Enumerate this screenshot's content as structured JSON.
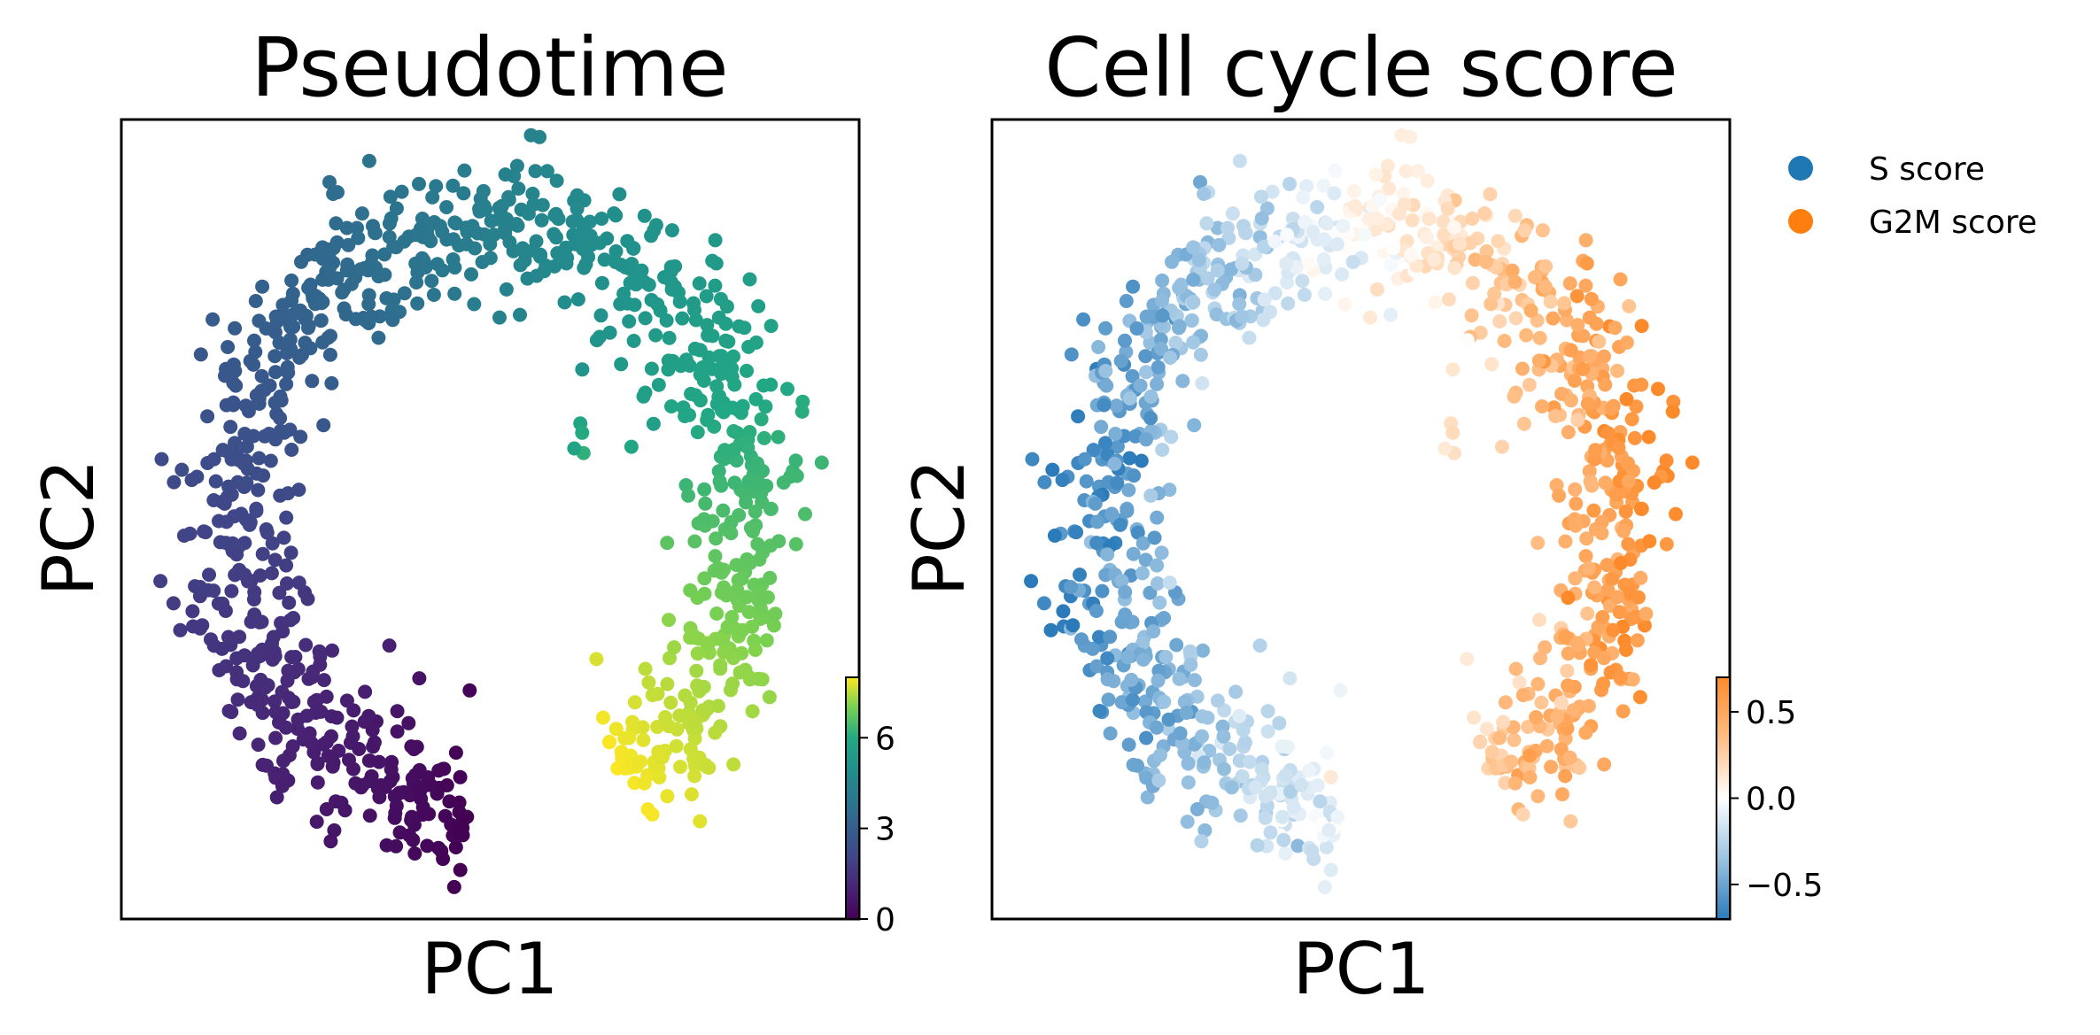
{
  "chart_data": [
    {
      "type": "scatter",
      "title": "Pseudotime",
      "xlabel": "PC1",
      "ylabel": "PC2",
      "grid": false,
      "axis_ticks": false,
      "color_variable": "pseudotime",
      "colormap": "viridis",
      "colorbar": {
        "range": [
          0,
          8
        ],
        "ticks": [
          0,
          3,
          6
        ],
        "tick_labels": [
          "0",
          "3",
          "6"
        ]
      },
      "shape": "ring",
      "approx_point_count": 1000,
      "ring": {
        "center": [
          0.0,
          0.0
        ],
        "radius": 1.0,
        "spread": 0.12,
        "gap_angle_deg": [
          280,
          300
        ],
        "note_keys": "x,y in PC units; color increases counterclockwise from bottom"
      }
    },
    {
      "type": "scatter",
      "title": "Cell cycle score",
      "xlabel": "PC1",
      "ylabel": "PC2",
      "grid": false,
      "axis_ticks": false,
      "color_variable": "cell cycle score",
      "colormap": "diverging blue-white-orange",
      "colorbar": {
        "range": [
          -0.7,
          0.7
        ],
        "ticks": [
          -0.5,
          0.0,
          0.5
        ],
        "tick_labels": [
          "−0.5",
          "0.0",
          "0.5"
        ]
      },
      "legend": {
        "placement": "outside-right-top",
        "entries": [
          {
            "label": "S score",
            "color": "#1f77b4"
          },
          {
            "label": "G2M score",
            "color": "#ff7f0e"
          }
        ]
      }
    }
  ],
  "colors": {
    "s_score": "#1f77b4",
    "g2m_score": "#ff7f0e",
    "frame": "#000000"
  }
}
